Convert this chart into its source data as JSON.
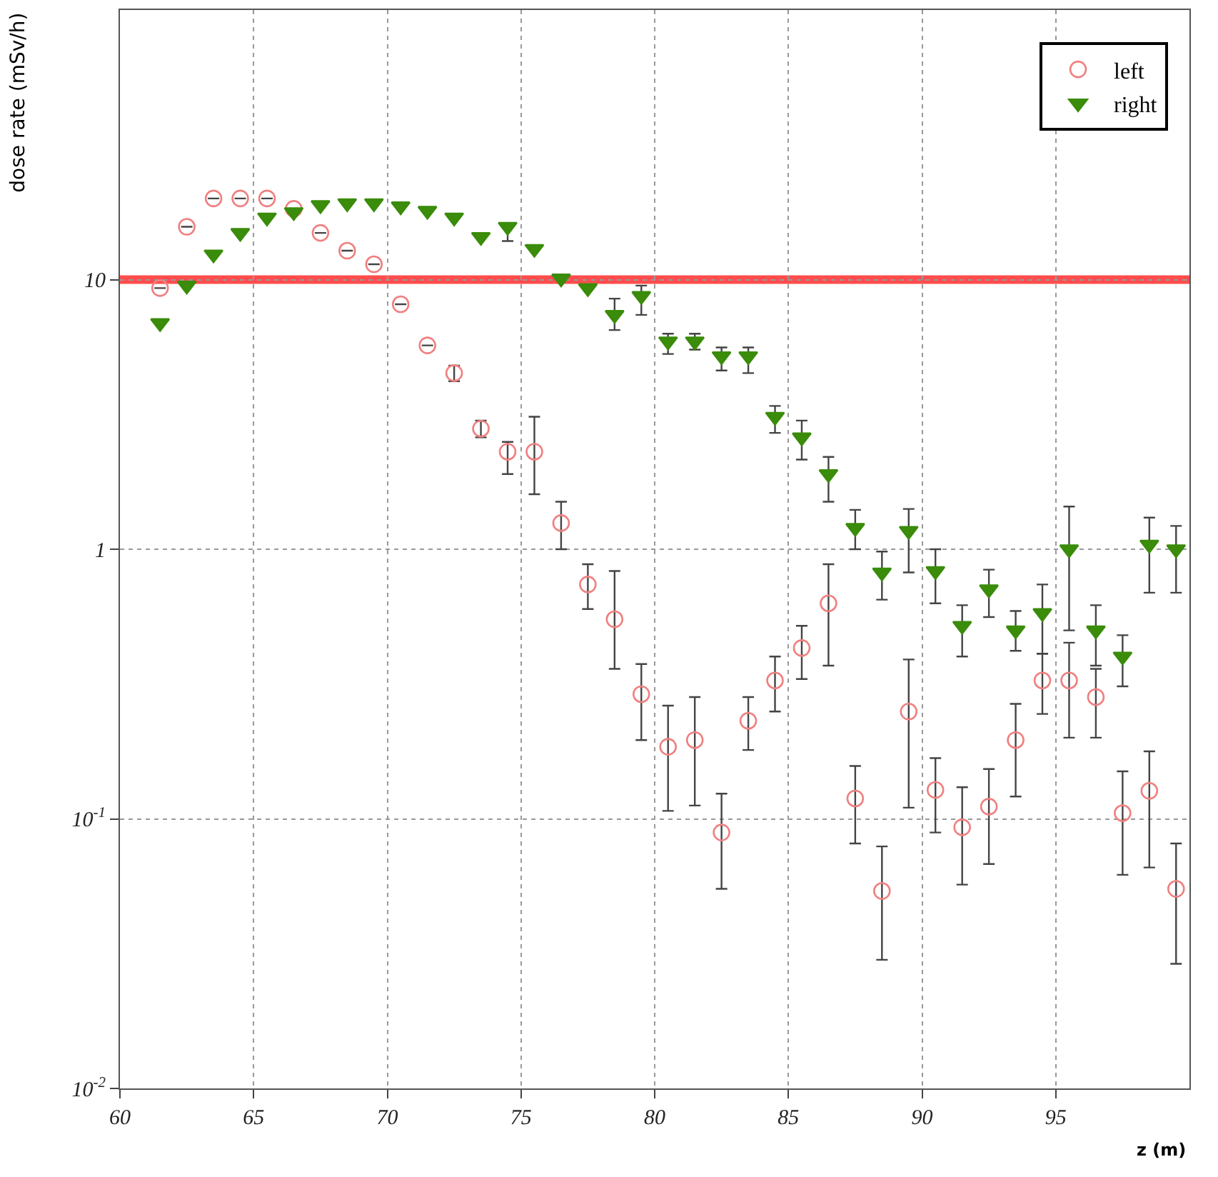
{
  "chart_data": {
    "type": "scatter",
    "xlabel": "z (m)",
    "ylabel": "dose rate (mSv/h)",
    "x": [
      61.5,
      62.5,
      63.5,
      64.5,
      65.5,
      66.5,
      67.5,
      68.5,
      69.5,
      70.5,
      71.5,
      72.5,
      73.5,
      74.5,
      75.5,
      76.5,
      77.5,
      78.5,
      79.5,
      80.5,
      81.5,
      82.5,
      83.5,
      84.5,
      85.5,
      86.5,
      87.5,
      88.5,
      89.5,
      90.5,
      91.5,
      92.5,
      93.5,
      94.5,
      95.5,
      96.5,
      97.5,
      98.5,
      99.5
    ],
    "series": [
      {
        "name": "left",
        "color": "#f08080",
        "marker": "circle",
        "values": [
          9.3,
          15.7,
          20,
          20,
          20,
          18.3,
          14.9,
          12.8,
          11.4,
          8.1,
          5.7,
          4.5,
          2.8,
          2.3,
          2.3,
          1.25,
          0.74,
          0.55,
          0.29,
          0.185,
          0.196,
          0.089,
          0.231,
          0.326,
          0.43,
          0.63,
          0.119,
          0.054,
          0.25,
          0.128,
          0.093,
          0.111,
          0.196,
          0.326,
          0.326,
          0.283,
          0.105,
          0.127,
          0.055
        ],
        "errors": [
          null,
          null,
          null,
          null,
          null,
          null,
          null,
          null,
          null,
          null,
          null,
          [
            4.2,
            4.8
          ],
          [
            2.6,
            3.0
          ],
          [
            1.9,
            2.5
          ],
          [
            1.6,
            3.1
          ],
          [
            1.0,
            1.5
          ],
          [
            0.6,
            0.88
          ],
          [
            0.36,
            0.83
          ],
          [
            0.196,
            0.375
          ],
          [
            0.107,
            0.263
          ],
          [
            0.112,
            0.283
          ],
          [
            0.055,
            0.124
          ],
          [
            0.18,
            0.283
          ],
          [
            0.25,
            0.4
          ],
          [
            0.33,
            0.52
          ],
          [
            0.37,
            0.88
          ],
          [
            0.081,
            0.157
          ],
          [
            0.03,
            0.079
          ],
          [
            0.11,
            0.39
          ],
          [
            0.089,
            0.168
          ],
          [
            0.057,
            0.131
          ],
          [
            0.068,
            0.153
          ],
          [
            0.121,
            0.267
          ],
          [
            0.245,
            0.41
          ],
          [
            0.2,
            0.45
          ],
          [
            0.2,
            0.36
          ],
          [
            0.062,
            0.15
          ],
          [
            0.066,
            0.178
          ],
          [
            0.029,
            0.081
          ]
        ]
      },
      {
        "name": "right",
        "color": "#3a8c0a",
        "marker": "triangle",
        "values": [
          6.9,
          9.5,
          12.4,
          14.9,
          17,
          17.8,
          18.9,
          19.2,
          19.2,
          18.7,
          18,
          17,
          14.4,
          15.7,
          13,
          10.1,
          9.3,
          7.4,
          8.7,
          5.9,
          5.9,
          5.2,
          5.2,
          3.1,
          2.6,
          1.9,
          1.2,
          0.82,
          1.17,
          0.83,
          0.52,
          0.71,
          0.5,
          0.58,
          1.0,
          0.5,
          0.4,
          1.04,
          1.0
        ],
        "errors": [
          null,
          null,
          null,
          null,
          null,
          null,
          null,
          null,
          null,
          null,
          null,
          null,
          null,
          [
            13.9,
            16.2
          ],
          null,
          null,
          null,
          [
            6.5,
            8.5
          ],
          [
            7.4,
            9.5
          ],
          [
            5.3,
            6.3
          ],
          [
            5.5,
            6.3
          ],
          [
            4.6,
            5.6
          ],
          [
            4.5,
            5.6
          ],
          [
            2.7,
            3.4
          ],
          [
            2.15,
            3.0
          ],
          [
            1.5,
            2.2
          ],
          [
            1.0,
            1.4
          ],
          [
            0.65,
            0.98
          ],
          [
            0.82,
            1.41
          ],
          [
            0.63,
            1.0
          ],
          [
            0.4,
            0.62
          ],
          [
            0.56,
            0.84
          ],
          [
            0.42,
            0.59
          ],
          [
            0.41,
            0.74
          ],
          [
            0.5,
            1.44
          ],
          [
            0.37,
            0.62
          ],
          [
            0.31,
            0.48
          ],
          [
            0.69,
            1.31
          ],
          [
            0.69,
            1.22
          ]
        ]
      }
    ],
    "log": "y",
    "xlim": [
      60,
      100
    ],
    "xticks": [
      60,
      65,
      70,
      75,
      80,
      85,
      90,
      95
    ],
    "ylim": [
      0.01,
      100
    ],
    "yticks": [
      {
        "value": 0.01,
        "label": "10$^{-2}$"
      },
      {
        "value": 0.1,
        "label": "10$^{-1}$"
      },
      1,
      10
    ],
    "ref_lines": [
      {
        "axis": "y",
        "value": 10,
        "color": "#ff4d4d"
      }
    ],
    "grid": true,
    "legend": "top right"
  }
}
